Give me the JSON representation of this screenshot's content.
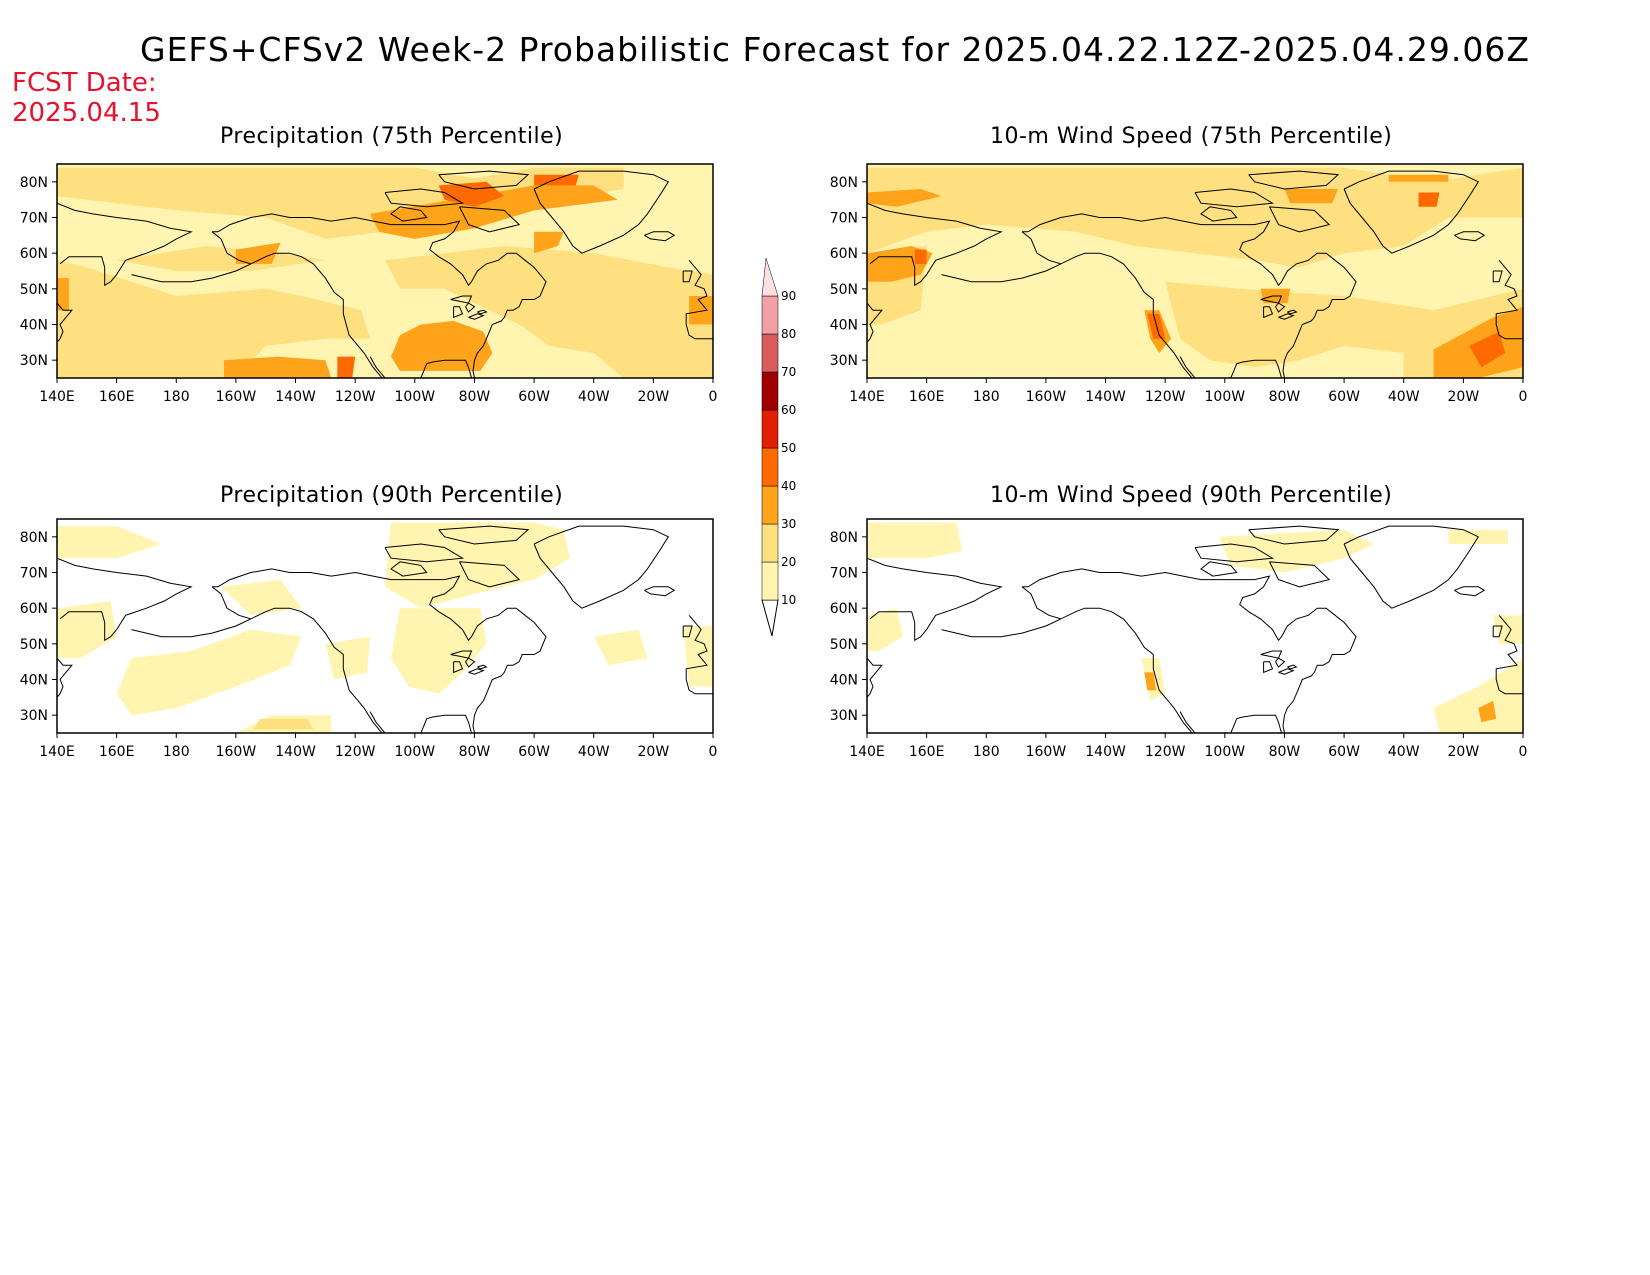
{
  "title": "GEFS+CFSv2 Week-2 Probabilistic Forecast for 2025.04.22.12Z-2025.04.29.06Z",
  "fcst_date_label": "FCST Date:",
  "fcst_date_value": "2025.04.15",
  "panels": [
    {
      "title": "Precipitation (75th Percentile)",
      "variable": "precipitation",
      "percentile": 75
    },
    {
      "title": "10-m Wind Speed (75th Percentile)",
      "variable": "wind",
      "percentile": 75
    },
    {
      "title": "Precipitation (90th Percentile)",
      "variable": "precipitation",
      "percentile": 90
    },
    {
      "title": "10-m Wind Speed (90th Percentile)",
      "variable": "wind",
      "percentile": 90
    }
  ],
  "map": {
    "lon_range": [
      140,
      360
    ],
    "lat_range": [
      25,
      85
    ],
    "lon_ticks": [
      {
        "lon": 140,
        "label": "140E"
      },
      {
        "lon": 160,
        "label": "160E"
      },
      {
        "lon": 180,
        "label": "180"
      },
      {
        "lon": 200,
        "label": "160W"
      },
      {
        "lon": 220,
        "label": "140W"
      },
      {
        "lon": 240,
        "label": "120W"
      },
      {
        "lon": 260,
        "label": "100W"
      },
      {
        "lon": 280,
        "label": "80W"
      },
      {
        "lon": 300,
        "label": "60W"
      },
      {
        "lon": 320,
        "label": "40W"
      },
      {
        "lon": 340,
        "label": "20W"
      },
      {
        "lon": 360,
        "label": "0"
      }
    ],
    "lat_ticks": [
      {
        "lat": 30,
        "label": "30N"
      },
      {
        "lat": 40,
        "label": "40N"
      },
      {
        "lat": 50,
        "label": "50N"
      },
      {
        "lat": 60,
        "label": "60N"
      },
      {
        "lat": 70,
        "label": "70N"
      },
      {
        "lat": 80,
        "label": "80N"
      }
    ]
  },
  "colorbar": {
    "levels": [
      "10",
      "20",
      "30",
      "40",
      "50",
      "60",
      "70",
      "80",
      "90"
    ],
    "colors": [
      "#fff5b0",
      "#ffe080",
      "#ffa31a",
      "#ff6a00",
      "#e02000",
      "#a00000",
      "#d95c5c",
      "#f2a0a5",
      "#fde0e2"
    ]
  }
}
